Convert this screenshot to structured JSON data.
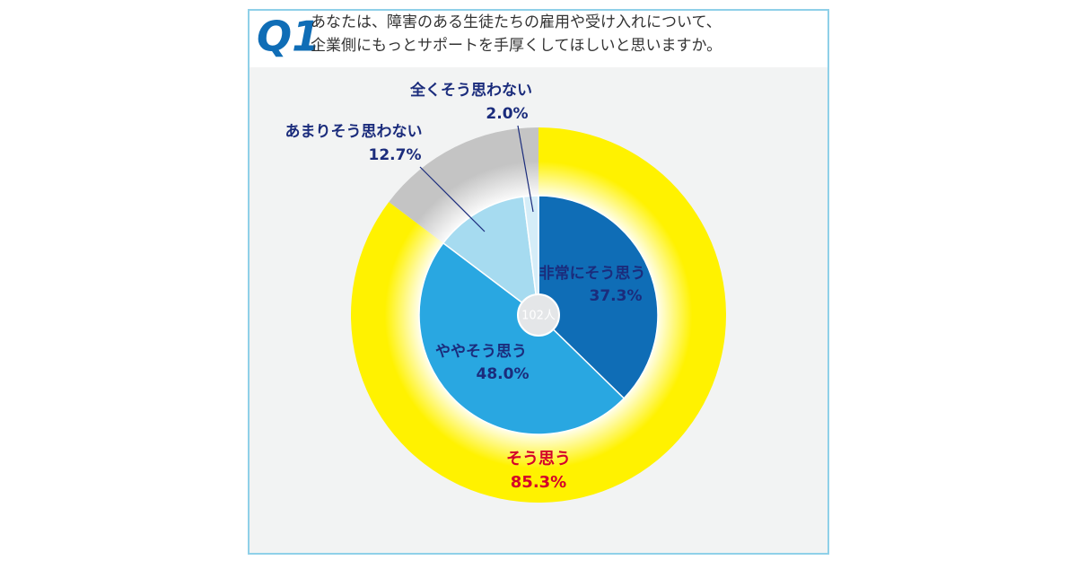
{
  "question_number": "Q1",
  "chart_data": {
    "type": "nested-donut",
    "title": [
      "あなたは、障害のある生徒たちの雇用や受け入れについて、",
      "企業側にもっとサポートを手厚くしてほしいと思いますか。"
    ],
    "center_label": "102人",
    "series": [
      {
        "categories": [
          "非常にそう思う",
          "ややそう思う",
          "あまりそう思わない",
          "全くそう思わない"
        ],
        "values": [
          37.3,
          48.0,
          12.7,
          2.0
        ],
        "value_labels": [
          "37.3%",
          "48.0%",
          "12.7%",
          "2.0%"
        ],
        "colors": [
          "#0f6db6",
          "#29a7e1",
          "#a6dbf0",
          "#d5edf8"
        ]
      },
      {
        "categories": [
          "そう思う",
          null
        ],
        "values": [
          85.3,
          14.7
        ],
        "value_labels": [
          "85.3%",
          null
        ],
        "colors": [
          "#fff200",
          "#c4c4c4"
        ]
      }
    ]
  }
}
